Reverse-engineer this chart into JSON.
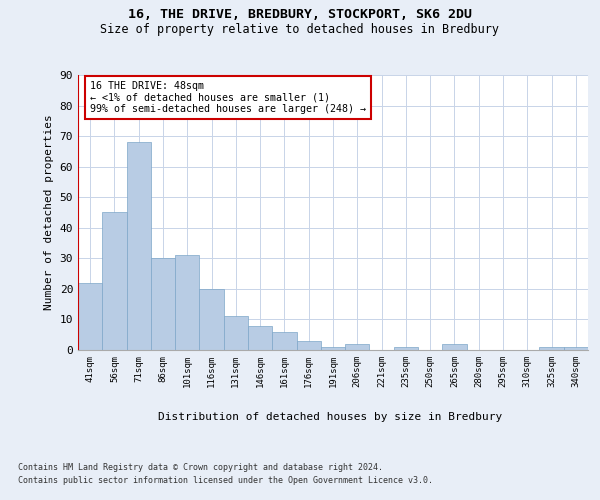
{
  "title1": "16, THE DRIVE, BREDBURY, STOCKPORT, SK6 2DU",
  "title2": "Size of property relative to detached houses in Bredbury",
  "xlabel": "Distribution of detached houses by size in Bredbury",
  "ylabel": "Number of detached properties",
  "categories": [
    "41sqm",
    "56sqm",
    "71sqm",
    "86sqm",
    "101sqm",
    "116sqm",
    "131sqm",
    "146sqm",
    "161sqm",
    "176sqm",
    "191sqm",
    "206sqm",
    "221sqm",
    "235sqm",
    "250sqm",
    "265sqm",
    "280sqm",
    "295sqm",
    "310sqm",
    "325sqm",
    "340sqm"
  ],
  "values": [
    22,
    45,
    68,
    30,
    31,
    20,
    11,
    8,
    6,
    3,
    1,
    2,
    0,
    1,
    0,
    2,
    0,
    0,
    0,
    1,
    1
  ],
  "bar_color": "#b8cce4",
  "bar_edge_color": "#7da6c8",
  "highlight_line_color": "#cc0000",
  "annotation_box_text": "16 THE DRIVE: 48sqm\n← <1% of detached houses are smaller (1)\n99% of semi-detached houses are larger (248) →",
  "annotation_box_color": "#cc0000",
  "ylim": [
    0,
    90
  ],
  "yticks": [
    0,
    10,
    20,
    30,
    40,
    50,
    60,
    70,
    80,
    90
  ],
  "bg_color": "#e8eef7",
  "plot_bg_color": "#ffffff",
  "grid_color": "#c8d4e8",
  "footnote1": "Contains HM Land Registry data © Crown copyright and database right 2024.",
  "footnote2": "Contains public sector information licensed under the Open Government Licence v3.0."
}
